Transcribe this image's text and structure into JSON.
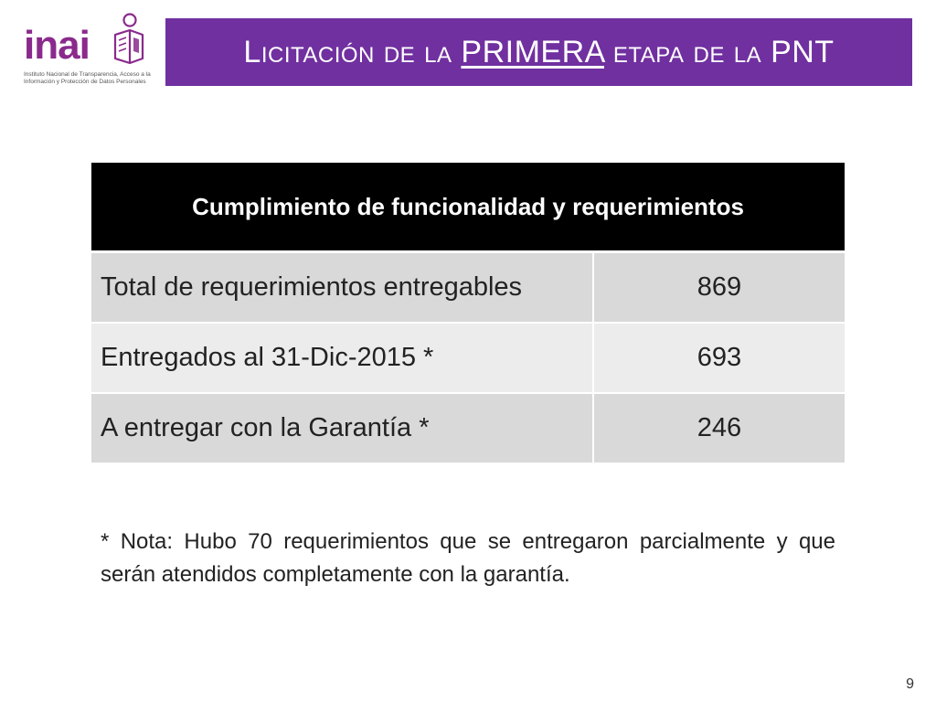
{
  "logo": {
    "wordmark": "inai",
    "caption": "Instituto Nacional de Transparencia, Acceso a la Información y Protección de Datos Personales"
  },
  "title": {
    "part1": "Licitación de la ",
    "emphasis": "PRIMERA",
    "part2": " etapa de la PNT"
  },
  "table": {
    "header": "Cumplimiento de funcionalidad y requerimientos",
    "rows": [
      {
        "label": "Total de requerimientos entregables",
        "value": "869"
      },
      {
        "label": "Entregados al 31-Dic-2015 *",
        "value": "693"
      },
      {
        "label": "A entregar con la Garantía *",
        "value": "246"
      }
    ]
  },
  "note": "* Nota: Hubo 70 requerimientos que se entregaron parcialmente y que serán atendidos completamente con la garantía.",
  "page_number": "9",
  "colors": {
    "brand_purple": "#7030a0",
    "logo_purple": "#8a2a8c",
    "header_black": "#000000",
    "row_gray": "#d9d9d9",
    "row_light": "#ececec"
  }
}
